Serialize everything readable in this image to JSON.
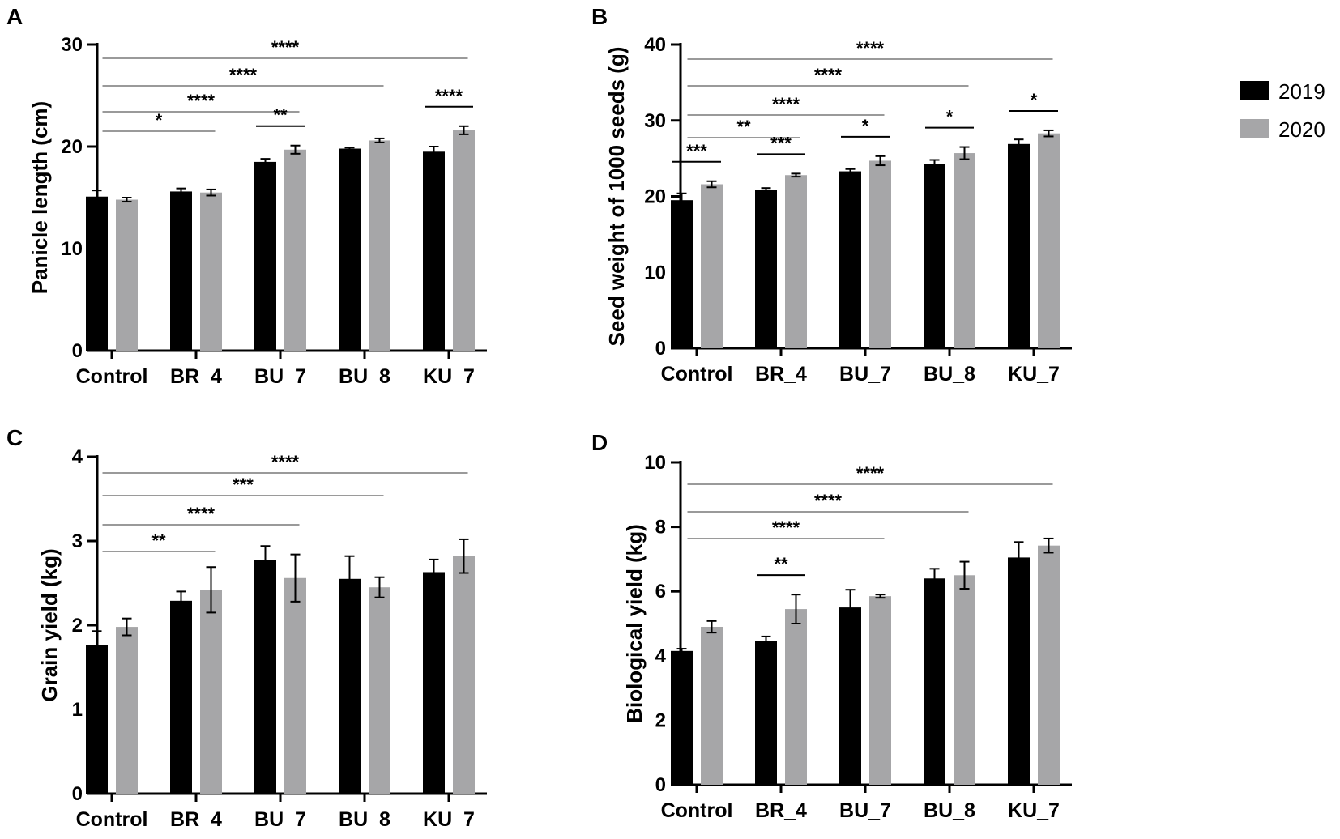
{
  "legend": {
    "entries": [
      {
        "name": "2019",
        "color": "#000000"
      },
      {
        "name": "2020",
        "color": "#a6a6a8"
      }
    ]
  },
  "chart_data": [
    {
      "panel": "A",
      "type": "bar",
      "ylabel": "Panicle length (cm)",
      "ylim": [
        0,
        30
      ],
      "yticks": [
        0,
        10,
        20,
        30
      ],
      "categories": [
        "Control",
        "BR_4",
        "BU_7",
        "BU_8",
        "KU_7"
      ],
      "series": [
        {
          "name": "2019",
          "values": [
            15.1,
            15.6,
            18.5,
            19.8,
            19.5
          ],
          "errors": [
            0.6,
            0.3,
            0.3,
            0.1,
            0.5
          ]
        },
        {
          "name": "2020",
          "values": [
            14.8,
            15.5,
            19.7,
            20.6,
            21.6
          ],
          "errors": [
            0.2,
            0.3,
            0.4,
            0.2,
            0.4
          ]
        }
      ],
      "comparisons": [
        {
          "label": "*",
          "type": "span",
          "to": "BR_4"
        },
        {
          "label": "****",
          "type": "span",
          "to": "BU_7"
        },
        {
          "label": "****",
          "type": "span",
          "to": "BU_8"
        },
        {
          "label": "****",
          "type": "span",
          "to": "KU_7"
        },
        {
          "label": "**",
          "type": "pair",
          "category": "BU_7"
        },
        {
          "label": "****",
          "type": "pair",
          "category": "KU_7"
        }
      ]
    },
    {
      "panel": "B",
      "type": "bar",
      "ylabel": "Seed weight of 1000 seeds (g)",
      "ylim": [
        0,
        40
      ],
      "yticks": [
        0,
        10,
        20,
        30,
        40
      ],
      "categories": [
        "Control",
        "BR_4",
        "BU_7",
        "BU_8",
        "KU_7"
      ],
      "series": [
        {
          "name": "2019",
          "values": [
            19.5,
            20.8,
            23.3,
            24.3,
            26.9
          ],
          "errors": [
            0.9,
            0.3,
            0.3,
            0.5,
            0.6
          ]
        },
        {
          "name": "2020",
          "values": [
            21.6,
            22.8,
            24.7,
            25.7,
            28.3
          ],
          "errors": [
            0.4,
            0.2,
            0.6,
            0.8,
            0.4
          ]
        }
      ],
      "comparisons": [
        {
          "label": "**",
          "type": "span",
          "to": "BR_4"
        },
        {
          "label": "****",
          "type": "span",
          "to": "BU_7"
        },
        {
          "label": "****",
          "type": "span",
          "to": "BU_8"
        },
        {
          "label": "****",
          "type": "span",
          "to": "KU_7"
        },
        {
          "label": "***",
          "type": "pair",
          "category": "Control"
        },
        {
          "label": "***",
          "type": "pair",
          "category": "BR_4"
        },
        {
          "label": "*",
          "type": "pair",
          "category": "BU_7"
        },
        {
          "label": "*",
          "type": "pair",
          "category": "BU_8"
        },
        {
          "label": "*",
          "type": "pair",
          "category": "KU_7"
        }
      ]
    },
    {
      "panel": "C",
      "type": "bar",
      "ylabel": "Grain yield (kg)",
      "ylim": [
        0,
        4
      ],
      "yticks": [
        0,
        1,
        2,
        3,
        4
      ],
      "categories": [
        "Control",
        "BR_4",
        "BU_7",
        "BU_8",
        "KU_7"
      ],
      "series": [
        {
          "name": "2019",
          "values": [
            1.76,
            2.29,
            2.77,
            2.55,
            2.63
          ],
          "errors": [
            0.17,
            0.11,
            0.17,
            0.27,
            0.15
          ]
        },
        {
          "name": "2020",
          "values": [
            1.98,
            2.42,
            2.56,
            2.45,
            2.82
          ],
          "errors": [
            0.1,
            0.27,
            0.28,
            0.12,
            0.2
          ]
        }
      ],
      "comparisons": [
        {
          "label": "**",
          "type": "span",
          "to": "BR_4"
        },
        {
          "label": "****",
          "type": "span",
          "to": "BU_7"
        },
        {
          "label": "***",
          "type": "span",
          "to": "BU_8"
        },
        {
          "label": "****",
          "type": "span",
          "to": "KU_7"
        }
      ]
    },
    {
      "panel": "D",
      "type": "bar",
      "ylabel": "Biological yield (kg)",
      "ylim": [
        0,
        10
      ],
      "yticks": [
        0,
        2,
        4,
        6,
        8,
        10
      ],
      "categories": [
        "Control",
        "BR_4",
        "BU_7",
        "BU_8",
        "KU_7"
      ],
      "series": [
        {
          "name": "2019",
          "values": [
            4.15,
            4.45,
            5.5,
            6.4,
            7.05
          ],
          "errors": [
            0.07,
            0.15,
            0.55,
            0.3,
            0.48
          ]
        },
        {
          "name": "2020",
          "values": [
            4.9,
            5.45,
            5.85,
            6.5,
            7.42
          ],
          "errors": [
            0.18,
            0.45,
            0.05,
            0.42,
            0.22
          ]
        }
      ],
      "comparisons": [
        {
          "label": "****",
          "type": "span",
          "to": "BU_7"
        },
        {
          "label": "****",
          "type": "span",
          "to": "BU_8"
        },
        {
          "label": "****",
          "type": "span",
          "to": "KU_7"
        },
        {
          "label": "**",
          "type": "pair",
          "category": "BR_4"
        }
      ]
    }
  ]
}
